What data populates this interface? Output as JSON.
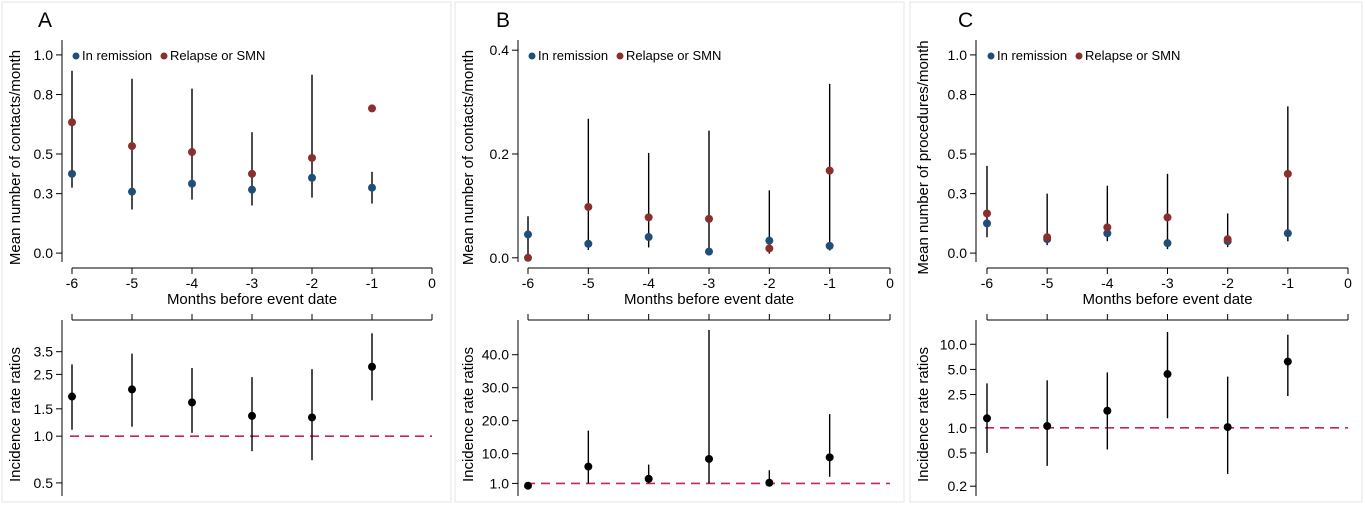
{
  "chart_data": [
    {
      "panel": "A",
      "top": {
        "type": "scatter",
        "ylabel": "Mean number of contacts/month",
        "xlabel": "Months before event date",
        "x_ticks": [
          "-6",
          "-5",
          "-4",
          "-3",
          "-2",
          "-1",
          "0"
        ],
        "y_ticks": [
          "0.0",
          "0.3",
          "0.5",
          "0.8",
          "1.0"
        ],
        "ylim": [
          -0.05,
          1.05
        ],
        "legend": [
          "In remission",
          "Relapse or SMN"
        ],
        "series": [
          {
            "name": "In remission",
            "color": "#1f4e79",
            "x": [
              -6,
              -5,
              -4,
              -3,
              -2,
              -1
            ],
            "y": [
              0.4,
              0.31,
              0.35,
              0.32,
              0.38,
              0.33
            ],
            "lo": [
              0.33,
              0.22,
              0.27,
              0.24,
              0.28,
              0.25
            ],
            "hi": [
              0.92,
              0.88,
              0.83,
              0.61,
              0.9,
              0.41
            ]
          },
          {
            "name": "Relapse or SMN",
            "color": "#8b2e2e",
            "x": [
              -6,
              -5,
              -4,
              -3,
              -2,
              -1
            ],
            "y": [
              0.66,
              0.54,
              0.51,
              0.4,
              0.48,
              0.73
            ],
            "lo": null,
            "hi": null
          }
        ],
        "ci_series": "mixed"
      },
      "bottom": {
        "type": "scatter",
        "ylabel": "Incidence rate ratios",
        "y_ticks": [
          "0.5",
          "1.0",
          "1.5",
          "2.5",
          "3.5"
        ],
        "y_scale": "log",
        "ylim": [
          0.45,
          5.2
        ],
        "reference_line": 1.0,
        "points": [
          {
            "x": -6,
            "y": 1.8,
            "lo": 1.1,
            "hi": 2.9
          },
          {
            "x": -5,
            "y": 2.0,
            "lo": 1.15,
            "hi": 3.4
          },
          {
            "x": -4,
            "y": 1.65,
            "lo": 1.05,
            "hi": 2.75
          },
          {
            "x": -3,
            "y": 1.35,
            "lo": 0.8,
            "hi": 2.4
          },
          {
            "x": -2,
            "y": 1.32,
            "lo": 0.7,
            "hi": 2.7
          },
          {
            "x": -1,
            "y": 2.8,
            "lo": 1.7,
            "hi": 4.6
          }
        ]
      }
    },
    {
      "panel": "B",
      "top": {
        "type": "scatter",
        "ylabel": "Mean number of contacts/month",
        "xlabel": "Months before event date",
        "x_ticks": [
          "-6",
          "-5",
          "-4",
          "-3",
          "-2",
          "-1",
          "0"
        ],
        "y_ticks": [
          "0.0",
          "0.2",
          "0.4"
        ],
        "ylim": [
          -0.01,
          0.41
        ],
        "legend": [
          "In remission",
          "Relapse or SMN"
        ],
        "series": [
          {
            "name": "In remission",
            "color": "#1f4e79",
            "x": [
              -6,
              -5,
              -4,
              -3,
              -2,
              -1
            ],
            "y": [
              0.045,
              0.027,
              0.04,
              0.012,
              0.033,
              0.023
            ],
            "lo": [
              0.028,
              0.015,
              0.028,
              0.005,
              0.022,
              0.014
            ],
            "hi": [
              0.08,
              0.268,
              0.202,
              0.245,
              0.13,
              0.335
            ]
          },
          {
            "name": "Relapse or SMN",
            "color": "#8b2e2e",
            "x": [
              -6,
              -5,
              -4,
              -3,
              -2,
              -1
            ],
            "y": [
              0.0,
              0.098,
              0.078,
              0.075,
              0.018,
              0.168
            ],
            "lo": [
              0.0,
              0.015,
              0.02,
              0.005,
              0.008,
              0.085
            ],
            "hi": null
          }
        ]
      },
      "bottom": {
        "type": "scatter",
        "ylabel": "Incidence rate ratios",
        "y_ticks": [
          "1.0",
          "10.0",
          "20.0",
          "30.0",
          "40.0"
        ],
        "y_scale": "linear",
        "ylim": [
          -1,
          49
        ],
        "reference_line": 1.0,
        "points": [
          {
            "x": -6,
            "y": 0.3,
            "lo": 0.3,
            "hi": 0.3
          },
          {
            "x": -5,
            "y": 6.1,
            "lo": 1.0,
            "hi": 17.0
          },
          {
            "x": -4,
            "y": 2.4,
            "lo": 1.0,
            "hi": 6.7
          },
          {
            "x": -3,
            "y": 8.4,
            "lo": 1.0,
            "hi": 47.5
          },
          {
            "x": -2,
            "y": 1.2,
            "lo": 0.3,
            "hi": 5.0
          },
          {
            "x": -1,
            "y": 8.9,
            "lo": 3.0,
            "hi": 22.0
          }
        ]
      }
    },
    {
      "panel": "C",
      "top": {
        "type": "scatter",
        "ylabel": "Mean number of procedures/month",
        "xlabel": "Months before event date",
        "x_ticks": [
          "-6",
          "-5",
          "-4",
          "-3",
          "-2",
          "-1",
          "0"
        ],
        "y_ticks": [
          "0.0",
          "0.3",
          "0.5",
          "0.8",
          "1.0"
        ],
        "ylim": [
          -0.05,
          1.05
        ],
        "legend": [
          "In remission",
          "Relapse or SMN"
        ],
        "series": [
          {
            "name": "In remission",
            "color": "#1f4e79",
            "x": [
              -6,
              -5,
              -4,
              -3,
              -2,
              -1
            ],
            "y": [
              0.15,
              0.07,
              0.1,
              0.05,
              0.06,
              0.1
            ],
            "lo": [
              0.08,
              0.04,
              0.06,
              0.02,
              0.03,
              0.06
            ],
            "hi": [
              0.44,
              0.3,
              0.34,
              0.4,
              0.2,
              0.18
            ]
          },
          {
            "name": "Relapse or SMN",
            "color": "#8b2e2e",
            "x": [
              -6,
              -5,
              -4,
              -3,
              -2,
              -1
            ],
            "y": [
              0.2,
              0.08,
              0.13,
              0.18,
              0.07,
              0.4
            ],
            "lo": [
              0.08,
              0.04,
              0.06,
              0.02,
              0.03,
              0.26
            ],
            "hi": [
              0.44,
              0.3,
              0.34,
              0.4,
              0.2,
              0.74
            ]
          }
        ]
      },
      "bottom": {
        "type": "scatter",
        "ylabel": "Incidence rate ratios",
        "y_ticks": [
          "0.2",
          "0.5",
          "1.0",
          "2.5",
          "5.0",
          "10.0"
        ],
        "y_scale": "log",
        "ylim": [
          0.18,
          17
        ],
        "reference_line": 1.0,
        "points": [
          {
            "x": -6,
            "y": 1.3,
            "lo": 0.5,
            "hi": 3.4
          },
          {
            "x": -5,
            "y": 1.05,
            "lo": 0.35,
            "hi": 3.7
          },
          {
            "x": -4,
            "y": 1.6,
            "lo": 0.55,
            "hi": 4.6
          },
          {
            "x": -3,
            "y": 4.4,
            "lo": 1.3,
            "hi": 14.0
          },
          {
            "x": -2,
            "y": 1.02,
            "lo": 0.28,
            "hi": 4.1
          },
          {
            "x": -1,
            "y": 6.2,
            "lo": 2.4,
            "hi": 13.0
          }
        ]
      }
    }
  ]
}
